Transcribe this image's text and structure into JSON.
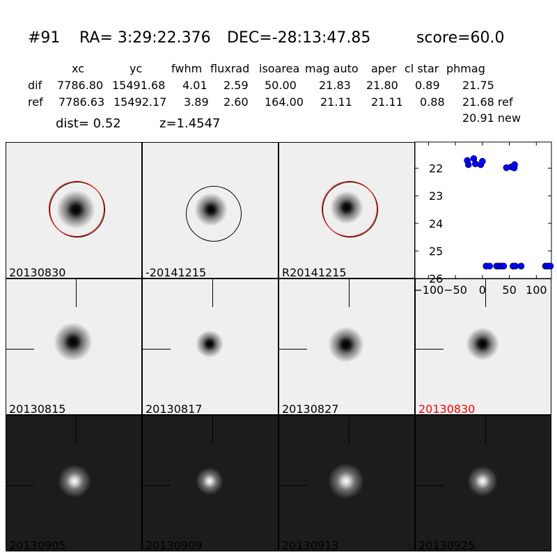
{
  "title": {
    "id": "#91",
    "ra": "RA= 3:29:22.376",
    "dec": "DEC=-28:13:47.85",
    "score": "score=60.0"
  },
  "table": {
    "headers": [
      "xc",
      "yc",
      "fwhm",
      "fluxrad",
      "isoarea",
      "mag auto",
      "aper",
      "cl star",
      "phmag"
    ],
    "rows": [
      {
        "label": "dif",
        "values": [
          "7786.80",
          "15491.68",
          "4.01",
          "2.59",
          "50.00",
          "21.83",
          "21.80",
          "0.89",
          "21.75"
        ]
      },
      {
        "label": "ref",
        "values": [
          "7786.63",
          "15492.17",
          "3.89",
          "2.60",
          "164.00",
          "21.11",
          "21.11",
          "0.88",
          "21.68 ref"
        ]
      }
    ],
    "extra_phmag": "20.91 new",
    "dist": "dist=  0.52",
    "z": "z=1.4547"
  },
  "panels": [
    {
      "label": "20130830",
      "style": "light",
      "circle": "black+red"
    },
    {
      "label": "-20141215",
      "style": "light",
      "circle": "black"
    },
    {
      "label": "R20141215",
      "style": "light",
      "circle": "black+red"
    },
    {
      "label": "20130815",
      "style": "light"
    },
    {
      "label": "20130817",
      "style": "light"
    },
    {
      "label": "20130827",
      "style": "light"
    },
    {
      "label": "20130830",
      "style": "light",
      "label_color": "#ff0000"
    },
    {
      "label": "20130905",
      "style": "dark"
    },
    {
      "label": "20130909",
      "style": "dark"
    },
    {
      "label": "20130913",
      "style": "dark"
    },
    {
      "label": "20130925",
      "style": "dark"
    }
  ],
  "chart_data": {
    "type": "scatter",
    "xlim": [
      -125,
      128
    ],
    "ylim": [
      26,
      21.05
    ],
    "y_inverted": true,
    "xticks": [
      -100,
      -50,
      0,
      50,
      100
    ],
    "yticks": [
      22,
      23,
      24,
      25,
      26
    ],
    "marker_color": "#0000ff",
    "points": [
      [
        -28,
        21.72
      ],
      [
        -26,
        21.87
      ],
      [
        -16,
        21.65
      ],
      [
        -13,
        21.84
      ],
      [
        -3,
        21.87
      ],
      [
        0,
        21.75
      ],
      [
        44.6,
        21.98
      ],
      [
        53.6,
        21.95
      ],
      [
        58.9,
        21.99
      ],
      [
        59.7,
        21.87
      ],
      [
        6.9,
        25.55
      ],
      [
        13.4,
        25.55
      ],
      [
        26.4,
        25.55
      ],
      [
        30.8,
        25.55
      ],
      [
        35,
        25.55
      ],
      [
        39.4,
        25.55
      ],
      [
        56.8,
        25.55
      ],
      [
        61,
        25.55
      ],
      [
        71.8,
        25.55
      ],
      [
        117,
        25.55
      ],
      [
        121.7,
        25.55
      ],
      [
        126,
        25.55
      ]
    ]
  }
}
